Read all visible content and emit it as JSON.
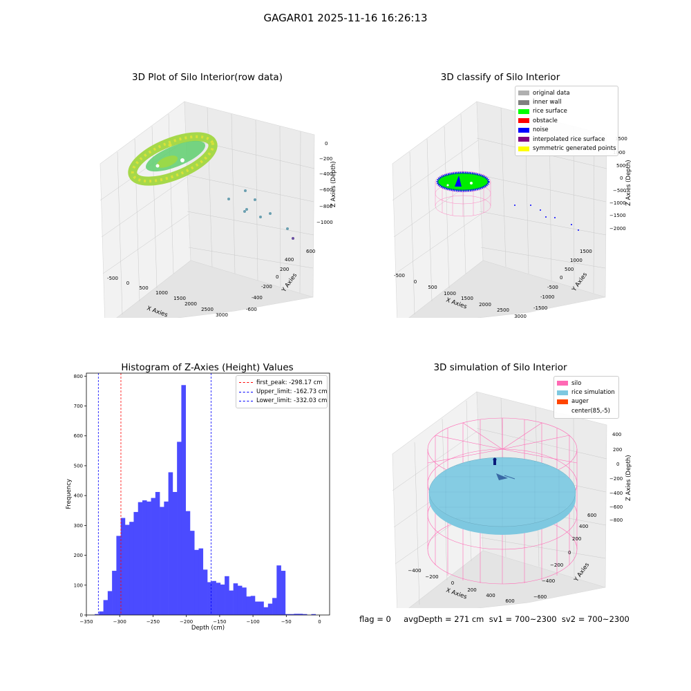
{
  "suptitle": "GAGAR01 2025-11-16 16:26:13",
  "footer": "flag = 0     avgDepth = 271 cm  sv1 = 700~2300  sv2 = 700~2300",
  "colors": {
    "rice": "#7ec8e0",
    "silo": "#ff69b4",
    "hist": "#4b4bff"
  },
  "chart_data": [
    {
      "type": "scatter",
      "title": "3D Plot of Silo Interior(row data)",
      "xlabel": "X Axies",
      "ylabel": "Y Axies",
      "zlabel": "Z Axies (Depth)",
      "x_ticks": [
        "-500",
        "0",
        "500",
        "1000",
        "1500",
        "2000",
        "2500",
        "3000"
      ],
      "y_ticks": [
        "-600",
        "-400",
        "-200",
        "0",
        "200",
        "400",
        "600"
      ],
      "z_ticks": [
        "0",
        "−200",
        "−400",
        "−600",
        "−800",
        "−1000"
      ]
    },
    {
      "type": "scatter",
      "title": "3D classify of Silo Interior",
      "xlabel": "X Axies",
      "ylabel": "Y Axies",
      "zlabel": "Z Axies (Depth)",
      "x_ticks": [
        "-500",
        "0",
        "500",
        "1000",
        "1500",
        "2000",
        "2500",
        "3000"
      ],
      "y_ticks": [
        "-1500",
        "-1000",
        "-500",
        "0",
        "500",
        "1000",
        "1500"
      ],
      "z_ticks": [
        "1500",
        "1000",
        "500",
        "0",
        "−500",
        "−1000",
        "−1500",
        "−2000"
      ],
      "legend": [
        {
          "label": "original data",
          "color": "#b0b0b0"
        },
        {
          "label": "inner wall",
          "color": "#808080"
        },
        {
          "label": "rice surface",
          "color": "#00ff00"
        },
        {
          "label": "obstacle",
          "color": "#ff0000"
        },
        {
          "label": "noise",
          "color": "#0000ff"
        },
        {
          "label": "interpolated rice surface",
          "color": "#800080"
        },
        {
          "label": "symmetric generated points",
          "color": "#ffff00"
        }
      ]
    },
    {
      "type": "bar",
      "title": "Histogram of Z-Axies (Height) Values",
      "xlabel": "Depth (cm)",
      "ylabel": "Frequency",
      "xlim": [
        -350,
        15
      ],
      "ylim": [
        0,
        810
      ],
      "x_ticks": [
        -350,
        -300,
        -250,
        -200,
        -150,
        -100,
        -50,
        0
      ],
      "y_ticks": [
        0,
        100,
        200,
        300,
        400,
        500,
        600,
        700,
        800
      ],
      "bin_start": -337.5,
      "bin_width": 6.5,
      "values": [
        3,
        12,
        50,
        80,
        148,
        265,
        325,
        302,
        312,
        345,
        378,
        384,
        380,
        392,
        412,
        362,
        380,
        478,
        412,
        580,
        770,
        348,
        282,
        218,
        223,
        152,
        110,
        114,
        108,
        102,
        130,
        82,
        106,
        98,
        92,
        62,
        64,
        45,
        45,
        26,
        38,
        57,
        166,
        148,
        3,
        3,
        4,
        4,
        3,
        0,
        3
      ],
      "vlines": [
        {
          "x": -298.17,
          "color": "#ff0000",
          "label": "first_peak: -298.17 cm"
        },
        {
          "x": -162.73,
          "color": "#0000ff",
          "label": "Upper_limit: -162.73 cm"
        },
        {
          "x": -332.03,
          "color": "#0000ff",
          "label": "Lower_limit: -332.03 cm"
        }
      ],
      "legend_position": "top-right"
    },
    {
      "type": "scatter",
      "title": "3D simulation of Silo Interior",
      "xlabel": "X Axies",
      "ylabel": "Y Axies",
      "zlabel": "Z Axies (Depth)",
      "x_ticks": [
        "−400",
        "−200",
        "0",
        "200",
        "400",
        "600"
      ],
      "y_ticks": [
        "−600",
        "−400",
        "−200",
        "0",
        "200",
        "400",
        "600"
      ],
      "z_ticks": [
        "400",
        "200",
        "0",
        "−200",
        "−400",
        "−600",
        "−800"
      ],
      "legend": [
        {
          "label": "silo",
          "color": "#ff69b4"
        },
        {
          "label": "rice simulation",
          "color": "#7ec8e0"
        },
        {
          "label": "auger",
          "color": "#ff4500"
        },
        {
          "label": "center(85,-5)",
          "color": "#ffffff"
        }
      ]
    }
  ]
}
